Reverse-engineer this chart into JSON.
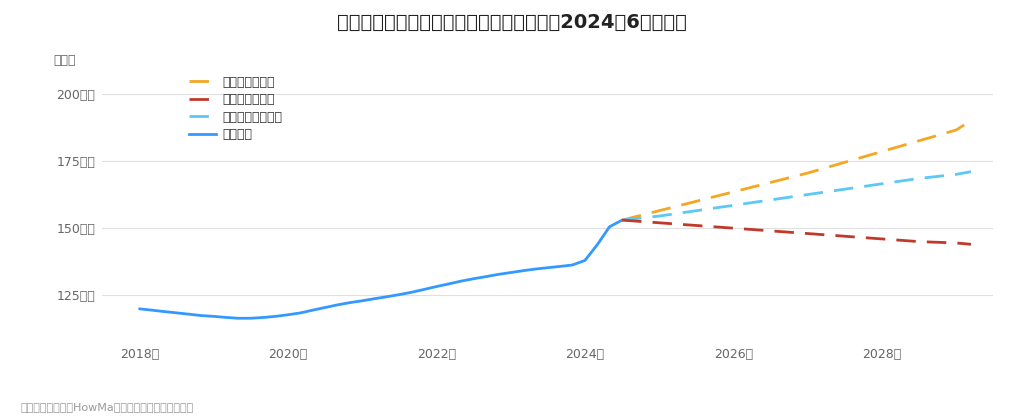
{
  "title": "博多駅周辺の中古マンションの価格動向（2024年6月時点）",
  "ylabel": "坪単価",
  "footnote": "売出し事例を元にHowMa運営元のコラビットが集計",
  "background_color": "#ffffff",
  "plot_bg_color": "#ffffff",
  "grid_color": "#e0e0e0",
  "ylim": [
    108,
    207
  ],
  "yticks": [
    125,
    150,
    175,
    200
  ],
  "ytick_labels": [
    "125万円",
    "150万円",
    "175万円",
    "200万円"
  ],
  "past_x": [
    2018.0,
    2018.17,
    2018.33,
    2018.5,
    2018.67,
    2018.83,
    2019.0,
    2019.17,
    2019.33,
    2019.5,
    2019.67,
    2019.83,
    2020.0,
    2020.17,
    2020.33,
    2020.5,
    2020.67,
    2020.83,
    2021.0,
    2021.17,
    2021.33,
    2021.5,
    2021.67,
    2021.83,
    2022.0,
    2022.17,
    2022.33,
    2022.5,
    2022.67,
    2022.83,
    2023.0,
    2023.17,
    2023.33,
    2023.5,
    2023.67,
    2023.83,
    2024.0,
    2024.17,
    2024.33,
    2024.5
  ],
  "past_y": [
    120.0,
    119.5,
    119.0,
    118.5,
    118.0,
    117.5,
    117.2,
    116.8,
    116.5,
    116.5,
    116.8,
    117.2,
    117.8,
    118.5,
    119.5,
    120.5,
    121.5,
    122.3,
    123.0,
    123.8,
    124.5,
    125.3,
    126.2,
    127.2,
    128.3,
    129.3,
    130.3,
    131.2,
    132.0,
    132.8,
    133.5,
    134.2,
    134.8,
    135.3,
    135.8,
    136.3,
    138.0,
    144.0,
    150.5,
    153.0
  ],
  "past_color": "#3399ff",
  "past_linewidth": 2.0,
  "forecast_x": [
    2024.5,
    2025.0,
    2025.5,
    2026.0,
    2026.5,
    2027.0,
    2027.5,
    2028.0,
    2028.5,
    2029.0,
    2029.2
  ],
  "good_y": [
    153.0,
    156.5,
    160.0,
    163.5,
    167.0,
    170.5,
    174.5,
    178.5,
    182.5,
    186.5,
    190.0
  ],
  "normal_y": [
    153.0,
    154.5,
    156.5,
    158.5,
    160.5,
    162.5,
    164.5,
    166.5,
    168.5,
    170.0,
    171.0
  ],
  "bad_y": [
    153.0,
    152.0,
    151.0,
    150.0,
    149.0,
    148.0,
    147.0,
    146.0,
    145.0,
    144.5,
    144.0
  ],
  "good_color": "#f5a623",
  "normal_color": "#5bc8f5",
  "bad_color": "#c0392b",
  "forecast_linewidth": 2.0,
  "legend_labels": [
    "グッドシナリオ",
    "バッドシナリオ",
    "ノーマルシナリオ",
    "過去推移"
  ],
  "legend_colors": [
    "#f5a623",
    "#c0392b",
    "#5bc8f5",
    "#3399ff"
  ],
  "xtick_positions": [
    2018,
    2020,
    2022,
    2024,
    2026,
    2028
  ],
  "xtick_labels": [
    "2018年",
    "2020年",
    "2022年",
    "2024年",
    "2026年",
    "2028年"
  ],
  "xlim": [
    2017.5,
    2029.5
  ]
}
